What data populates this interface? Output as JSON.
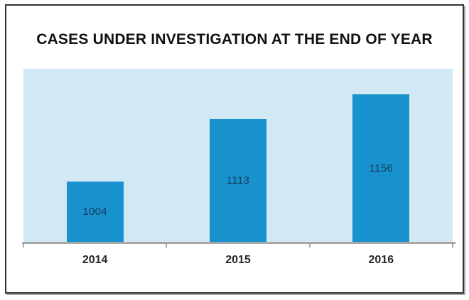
{
  "chart_data": {
    "type": "bar",
    "title": "CASES UNDER INVESTIGATION AT THE END OF YEAR",
    "categories": [
      "2014",
      "2015",
      "2016"
    ],
    "values": [
      1004,
      1113,
      1156
    ],
    "series_name": "Cases under investigation",
    "xlabel": "",
    "ylabel": "",
    "ylim": [
      900,
      1200
    ],
    "grid": false,
    "legend_position": "none",
    "data_labels_position": "inside-center",
    "colors": {
      "bar": "#1792cc",
      "plot_background": "#d3e8f5",
      "axis_line": "#a7a7a7",
      "data_label": "#1c3a5e",
      "tick_label": "#262626",
      "title": "#111111",
      "frame_border": "#333333",
      "page_background": "#ffffff"
    }
  }
}
